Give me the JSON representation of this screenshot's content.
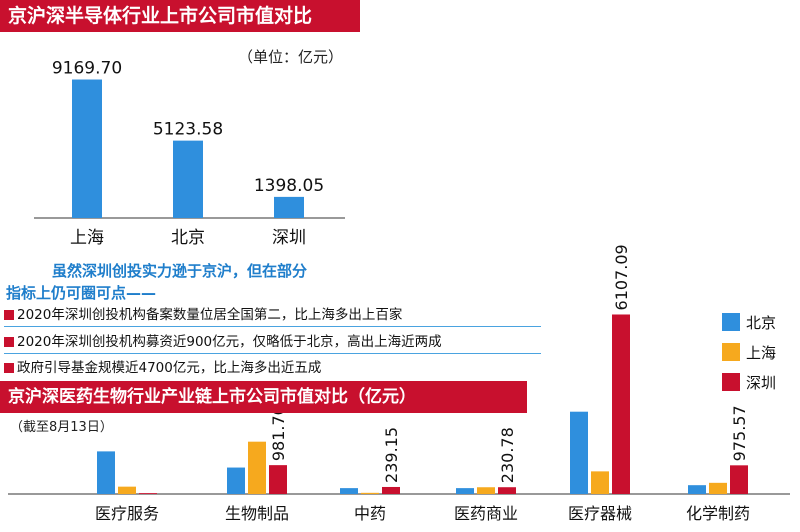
{
  "colors": {
    "beijing": "#2f8fdd",
    "shanghai": "#f6a91e",
    "shenzhen": "#c8102e",
    "banner": "#c8102e",
    "accent_text": "#1f7ecb"
  },
  "header1": {
    "title": "京沪深半导体行业上市公司市值对比",
    "unit": "（单位：亿元）"
  },
  "subheading": {
    "line1": "虽然深圳创投实力逊于京沪，但在部分",
    "line2": "指标上仍可圈可点——"
  },
  "bullets": [
    "2020年深圳创投机构备案数量位居全国第二，比上海多出上百家",
    "2020年深圳创投机构募资近900亿元，仅略低于北京，高出上海近两成",
    "政府引导基金规模近4700亿元，比上海多出近五成"
  ],
  "header2": {
    "title": "京沪深医药生物行业产业链上市公司市值对比（亿元）",
    "date": "（截至8月13日）"
  },
  "chart_data": [
    {
      "type": "bar",
      "title": "京沪深半导体行业上市公司市值对比",
      "unit": "亿元",
      "categories": [
        "上海",
        "北京",
        "深圳"
      ],
      "values": [
        9169.7,
        5123.58,
        1398.05
      ],
      "labels": [
        "9169.70",
        "5123.58",
        "1398.05"
      ],
      "ylim": [
        0,
        9800
      ]
    },
    {
      "type": "bar",
      "title": "京沪深医药生物行业产业链上市公司市值对比（亿元）",
      "categories": [
        "医疗服务",
        "生物制品",
        "中药",
        "医药商业",
        "医疗器械",
        "化学制药"
      ],
      "series": [
        {
          "name": "北京",
          "values": [
            1450,
            900,
            200,
            200,
            2800,
            300
          ]
        },
        {
          "name": "上海",
          "values": [
            250,
            1780,
            40,
            230,
            770,
            380
          ]
        },
        {
          "name": "深圳",
          "values": [
            30,
            981.7,
            239.15,
            230.78,
            6107.09,
            975.57
          ]
        }
      ],
      "data_labels": {
        "深圳": [
          "",
          "981.70",
          "239.15",
          "230.78",
          "6107.09",
          "975.57"
        ]
      },
      "legend": [
        "北京",
        "上海",
        "深圳"
      ],
      "legend_position": "top-right",
      "ylim": [
        0,
        6600
      ]
    }
  ]
}
